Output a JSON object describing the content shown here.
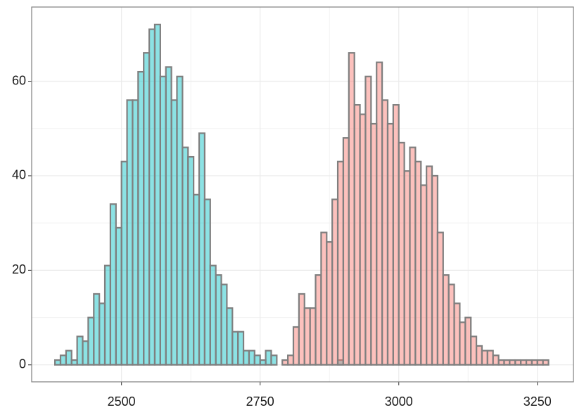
{
  "chart_data": {
    "type": "histogram",
    "bins": [
      2380,
      2390,
      2400,
      2410,
      2420,
      2430,
      2440,
      2450,
      2460,
      2470,
      2480,
      2490,
      2500,
      2510,
      2520,
      2530,
      2540,
      2550,
      2560,
      2570,
      2580,
      2590,
      2600,
      2610,
      2620,
      2630,
      2640,
      2650,
      2660,
      2670,
      2680,
      2690,
      2700,
      2710,
      2720,
      2730,
      2740,
      2750,
      2760,
      2770,
      2780,
      2790,
      2800,
      2810,
      2820,
      2830,
      2840,
      2850,
      2860,
      2870,
      2880,
      2890,
      2900,
      2910,
      2920,
      2930,
      2940,
      2950,
      2960,
      2970,
      2980,
      2990,
      3000,
      3010,
      3020,
      3030,
      3040,
      3050,
      3060,
      3070,
      3080,
      3090,
      3100,
      3110,
      3120,
      3130,
      3140,
      3150,
      3160,
      3170,
      3180,
      3190,
      3200,
      3210,
      3220,
      3230,
      3240,
      3250,
      3260,
      3270
    ],
    "series": [
      {
        "color": "#00BFC4",
        "values": [
          1,
          2,
          3,
          1,
          6,
          5,
          10,
          15,
          13,
          21,
          34,
          29,
          43,
          56,
          56,
          62,
          66,
          71,
          72,
          61,
          63,
          56,
          61,
          46,
          44,
          36,
          49,
          35,
          21,
          19,
          17,
          12,
          7,
          7,
          3,
          3,
          2,
          1,
          3,
          2,
          0,
          0,
          0,
          0,
          0,
          0,
          0,
          0,
          0,
          0,
          0,
          1,
          0,
          0,
          0,
          0,
          0,
          0,
          0,
          0,
          0,
          0,
          0,
          0,
          0,
          0,
          0,
          0,
          0,
          0,
          0,
          0,
          0,
          0,
          0,
          0,
          0,
          0,
          0,
          0,
          0,
          0,
          0,
          0,
          0,
          0,
          0,
          0,
          0
        ]
      },
      {
        "color": "#F8766D",
        "values": [
          0,
          0,
          0,
          0,
          0,
          0,
          0,
          0,
          0,
          0,
          0,
          0,
          0,
          0,
          0,
          0,
          0,
          0,
          0,
          0,
          0,
          0,
          0,
          0,
          0,
          0,
          0,
          0,
          0,
          0,
          0,
          0,
          0,
          0,
          0,
          0,
          0,
          0,
          0,
          0,
          0,
          1,
          2,
          8,
          15,
          12,
          12,
          19,
          28,
          26,
          35,
          43,
          48,
          66,
          55,
          53,
          61,
          51,
          64,
          56,
          51,
          55,
          47,
          41,
          46,
          43,
          38,
          42,
          40,
          28,
          19,
          17,
          13,
          9,
          10,
          6,
          4,
          3,
          3,
          2,
          1,
          1,
          1,
          1,
          1,
          1,
          1,
          1,
          1
        ]
      }
    ],
    "alpha": 0.45,
    "outline": "#7f7f7f",
    "xlim": [
      2338,
      3315
    ],
    "xticks": [
      2500,
      2750,
      3000,
      3250
    ],
    "ylim": [
      -3.6,
      75.7
    ],
    "yticks": [
      0,
      20,
      40,
      60
    ],
    "grid": true
  }
}
